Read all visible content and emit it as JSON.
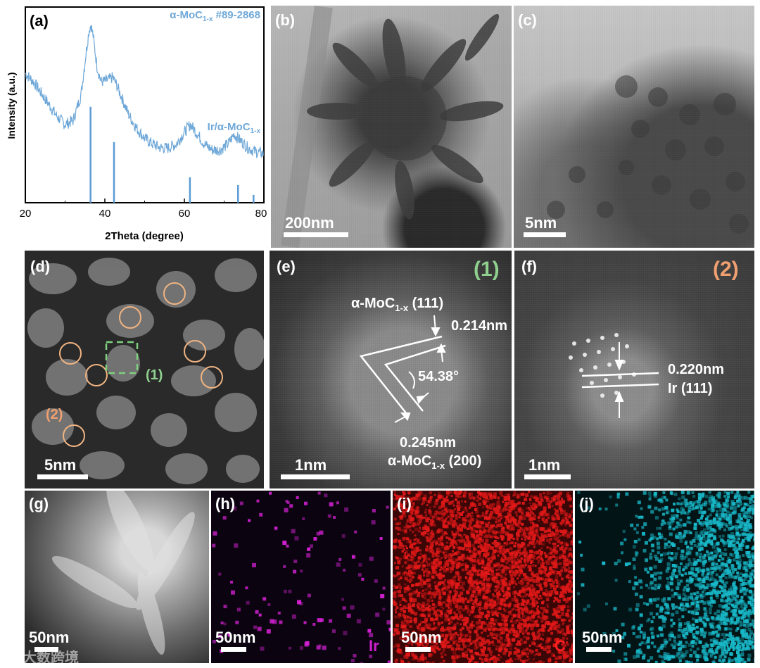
{
  "panels": {
    "a": {
      "label": "(a)",
      "ylabel": "Intensity (a.u.)",
      "xlabel": "2Theta (degree)",
      "ref_label_prefix": "α-MoC",
      "ref_label_sub": "1-x",
      "ref_label_suffix": " #89-2868",
      "sample_label_prefix": "Ir/α-MoC",
      "sample_label_sub": "1-x",
      "xticks": [
        "20",
        "40",
        "60",
        "80"
      ]
    },
    "b": {
      "label": "(b)",
      "scale": "200nm"
    },
    "c": {
      "label": "(c)",
      "scale": "5nm"
    },
    "d": {
      "label": "(d)",
      "scale": "5nm",
      "marker1": "(1)",
      "marker2": "(2)"
    },
    "e": {
      "label": "(e)",
      "tag": "(1)",
      "scale": "1nm",
      "plane1_prefix": "α-MoC",
      "plane1_sub": "1-x",
      "plane1_suffix": " (111)",
      "d1": "0.214nm",
      "angle": "54.38°",
      "d2": "0.245nm",
      "plane2_prefix": "α-MoC",
      "plane2_sub": "1-x",
      "plane2_suffix": " (200)"
    },
    "f": {
      "label": "(f)",
      "tag": "(2)",
      "scale": "1nm",
      "d": "0.220nm",
      "plane": "Ir (111)"
    },
    "g": {
      "label": "(g)",
      "scale": "50nm"
    },
    "h": {
      "label": "(h)",
      "scale": "50nm",
      "element": "Ir"
    },
    "i": {
      "label": "(i)",
      "scale": "50nm",
      "element": "C"
    },
    "j": {
      "label": "(j)",
      "scale": "50nm",
      "element": "Mo"
    }
  },
  "watermark": "大数跨境",
  "colors": {
    "xrd_line": "#6fa8d8",
    "xrd_ref": "#5b9bd5",
    "ir_map": "#d020d0",
    "c_map": "#e01818",
    "mo_map": "#18b8c8",
    "circle": "#f0b482",
    "box": "#7ed07e",
    "tag1": "#8fd08f",
    "tag2": "#f0a070"
  },
  "chart_data": {
    "type": "line",
    "xlabel": "2Theta (degree)",
    "ylabel": "Intensity (a.u.)",
    "xlim": [
      20,
      80
    ],
    "xticks": [
      20,
      40,
      60,
      80
    ],
    "series": [
      {
        "name": "Ir/α-MoC1-x",
        "x": [
          20,
          22,
          24,
          26,
          28,
          30,
          32,
          34,
          35,
          36,
          36.5,
          37,
          38,
          39,
          40,
          41,
          42,
          43,
          44,
          46,
          48,
          50,
          52,
          54,
          56,
          58,
          60,
          61.5,
          63,
          65,
          67,
          69,
          71,
          72.5,
          74,
          76,
          78,
          80
        ],
        "y": [
          0.66,
          0.62,
          0.56,
          0.5,
          0.44,
          0.4,
          0.42,
          0.55,
          0.72,
          0.88,
          0.91,
          0.86,
          0.7,
          0.62,
          0.62,
          0.63,
          0.64,
          0.6,
          0.55,
          0.45,
          0.38,
          0.33,
          0.3,
          0.28,
          0.28,
          0.3,
          0.36,
          0.4,
          0.36,
          0.3,
          0.27,
          0.27,
          0.3,
          0.35,
          0.32,
          0.28,
          0.26,
          0.25
        ]
      }
    ],
    "reference": {
      "name": "α-MoC1-x #89-2868",
      "x": [
        36.4,
        42.3,
        61.4,
        73.5,
        77.4
      ],
      "y": [
        0.49,
        0.31,
        0.13,
        0.09,
        0.04
      ]
    }
  }
}
